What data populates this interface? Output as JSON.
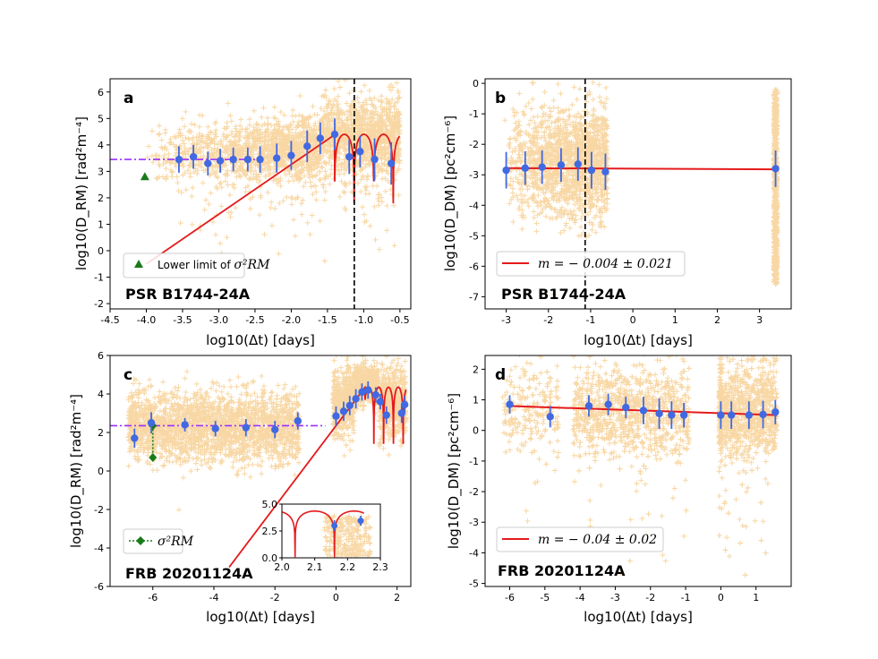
{
  "colors": {
    "scatter": "#f8d7a4",
    "binned": "#4169e1",
    "model": "#e41a1c",
    "dashdot": "#9b30ff",
    "lower_limit": "#1a7a1a",
    "vline": "#000000"
  },
  "chart_data": [
    {
      "panel": "a",
      "type": "scatter",
      "title": "PSR B1744-24A",
      "xlabel": "log10(Δt) [days]",
      "ylabel": "log10(D_RM) [rad²m⁻⁴]",
      "xlim": [
        -4.5,
        -0.35
      ],
      "ylim": [
        -2.2,
        6.5
      ],
      "xticks": [
        "-4.5",
        "-4.0",
        "-3.5",
        "-3.0",
        "-2.5",
        "-2.0",
        "-1.5",
        "-1.0",
        "-0.5"
      ],
      "yticks": [
        "-2",
        "-1",
        "0",
        "1",
        "2",
        "3",
        "4",
        "5",
        "6"
      ],
      "xtick_values": [
        -4.5,
        -4.0,
        -3.5,
        -3.0,
        -2.5,
        -2.0,
        -1.5,
        -1.0,
        -0.5
      ],
      "ytick_values": [
        -2,
        -1,
        0,
        1,
        2,
        3,
        4,
        5,
        6
      ],
      "vline_x": -1.13,
      "dashdot_y": 3.45,
      "dashdot_x": [
        -4.5,
        -2.5
      ],
      "lower_limit_point": {
        "x": -4.02,
        "y": 2.8
      },
      "legend": {
        "label": "Lower limit of ",
        "math": "σ²RM",
        "position": "lower-left"
      },
      "binned": [
        {
          "x": -3.55,
          "y": 3.45,
          "err": 0.5
        },
        {
          "x": -3.35,
          "y": 3.55,
          "err": 0.45
        },
        {
          "x": -3.15,
          "y": 3.3,
          "err": 0.45
        },
        {
          "x": -2.98,
          "y": 3.4,
          "err": 0.45
        },
        {
          "x": -2.8,
          "y": 3.45,
          "err": 0.45
        },
        {
          "x": -2.6,
          "y": 3.45,
          "err": 0.45
        },
        {
          "x": -2.43,
          "y": 3.45,
          "err": 0.5
        },
        {
          "x": -2.2,
          "y": 3.5,
          "err": 0.55
        },
        {
          "x": -2.0,
          "y": 3.6,
          "err": 0.55
        },
        {
          "x": -1.78,
          "y": 3.95,
          "err": 0.6
        },
        {
          "x": -1.6,
          "y": 4.25,
          "err": 0.6
        },
        {
          "x": -1.4,
          "y": 4.4,
          "err": 0.6
        },
        {
          "x": -1.2,
          "y": 3.55,
          "err": 0.65
        },
        {
          "x": -1.05,
          "y": 3.75,
          "err": 0.6
        },
        {
          "x": -0.85,
          "y": 3.45,
          "err": 0.8
        },
        {
          "x": -0.62,
          "y": 3.3,
          "err": 0.8
        }
      ]
    },
    {
      "panel": "b",
      "type": "scatter",
      "title": "PSR B1744-24A",
      "xlabel": "log10(Δt) [days]",
      "ylabel": "log10(D_DM) [pc²cm⁻⁶]",
      "xlim": [
        -3.5,
        3.75
      ],
      "ylim": [
        -7.4,
        0.15
      ],
      "xticks": [
        "-3",
        "-2",
        "-1",
        "0",
        "1",
        "2",
        "3"
      ],
      "yticks": [
        "-7",
        "-6",
        "-5",
        "-4",
        "-3",
        "-2",
        "-1",
        "0"
      ],
      "xtick_values": [
        -3,
        -2,
        -1,
        0,
        1,
        2,
        3
      ],
      "ytick_values": [
        -7,
        -6,
        -5,
        -4,
        -3,
        -2,
        -1,
        0
      ],
      "vline_x": -1.13,
      "fit": {
        "x": [
          -3.05,
          3.38
        ],
        "y": [
          -2.78,
          -2.82
        ]
      },
      "legend": {
        "label": "m = − 0.004 ± 0.021",
        "position": "lower-left"
      },
      "binned": [
        {
          "x": -3.0,
          "y": -2.85,
          "err": 0.6
        },
        {
          "x": -2.55,
          "y": -2.78,
          "err": 0.55
        },
        {
          "x": -2.15,
          "y": -2.75,
          "err": 0.55
        },
        {
          "x": -1.7,
          "y": -2.68,
          "err": 0.55
        },
        {
          "x": -1.3,
          "y": -2.65,
          "err": 0.55
        },
        {
          "x": -0.98,
          "y": -2.85,
          "err": 0.6
        },
        {
          "x": -0.65,
          "y": -2.9,
          "err": 0.6
        },
        {
          "x": 3.38,
          "y": -2.8,
          "err": 0.6
        }
      ]
    },
    {
      "panel": "c",
      "type": "scatter",
      "title": "FRB 20201124A",
      "xlabel": "log10(Δt) [days]",
      "ylabel": "log10(D_RM) [rad²m⁻⁴]",
      "xlim": [
        -7.4,
        2.45
      ],
      "ylim": [
        -6,
        6
      ],
      "xticks": [
        "-6",
        "-4",
        "-2",
        "0",
        "2"
      ],
      "yticks": [
        "-6",
        "-4",
        "-2",
        "0",
        "2",
        "4",
        "6"
      ],
      "xtick_values": [
        -6,
        -4,
        -2,
        0,
        2
      ],
      "ytick_values": [
        -6,
        -4,
        -2,
        0,
        2,
        4,
        6
      ],
      "dashdot_y": 2.35,
      "dashdot_x": [
        -7.4,
        -0.35
      ],
      "sigma_point": {
        "x": -6.0,
        "y_low": 0.7,
        "y_high": 2.35
      },
      "legend": {
        "label": "",
        "math": "σ²RM",
        "position": "lower-left"
      },
      "binned": [
        {
          "x": -6.6,
          "y": 1.7,
          "err": 0.5
        },
        {
          "x": -6.05,
          "y": 2.5,
          "err": 0.55
        },
        {
          "x": -4.95,
          "y": 2.4,
          "err": 0.35
        },
        {
          "x": -3.95,
          "y": 2.2,
          "err": 0.4
        },
        {
          "x": -2.95,
          "y": 2.25,
          "err": 0.45
        },
        {
          "x": -2.0,
          "y": 2.15,
          "err": 0.45
        },
        {
          "x": -1.25,
          "y": 2.6,
          "err": 0.45
        },
        {
          "x": 0.0,
          "y": 2.85,
          "err": 0.5
        },
        {
          "x": 0.25,
          "y": 3.1,
          "err": 0.5
        },
        {
          "x": 0.45,
          "y": 3.4,
          "err": 0.5
        },
        {
          "x": 0.65,
          "y": 3.75,
          "err": 0.5
        },
        {
          "x": 0.85,
          "y": 4.1,
          "err": 0.45
        },
        {
          "x": 1.05,
          "y": 4.2,
          "err": 0.45
        },
        {
          "x": 1.3,
          "y": 3.95,
          "err": 0.4
        },
        {
          "x": 1.45,
          "y": 3.6,
          "err": 0.4
        },
        {
          "x": 1.65,
          "y": 2.9,
          "err": 0.45
        },
        {
          "x": 2.15,
          "y": 3.0,
          "err": 0.5
        },
        {
          "x": 2.25,
          "y": 3.45,
          "err": 0.45
        }
      ],
      "inset": {
        "xlim": [
          2.0,
          2.3
        ],
        "ylim": [
          0.0,
          5.0
        ],
        "xticks": [
          "2.0",
          "2.1",
          "2.2",
          "2.3"
        ],
        "yticks": [
          "0.0",
          "2.5",
          "5.0"
        ],
        "xtick_values": [
          2.0,
          2.1,
          2.2,
          2.3
        ],
        "ytick_values": [
          0.0,
          2.5,
          5.0
        ],
        "binned": [
          {
            "x": 2.16,
            "y": 3.0,
            "err": 0.5
          },
          {
            "x": 2.24,
            "y": 3.45,
            "err": 0.45
          }
        ]
      }
    },
    {
      "panel": "d",
      "type": "scatter",
      "title": "FRB 20201124A",
      "xlabel": "log10(Δt) [days]",
      "ylabel": "log10(D_DM) [pc²cm⁻⁶]",
      "xlim": [
        -6.7,
        2.0
      ],
      "ylim": [
        -5.1,
        2.45
      ],
      "xticks": [
        "-6",
        "-5",
        "-4",
        "-3",
        "-2",
        "-1",
        "0",
        "1"
      ],
      "yticks": [
        "-5",
        "-4",
        "-3",
        "-2",
        "-1",
        "0",
        "1",
        "2"
      ],
      "xtick_values": [
        -6,
        -5,
        -4,
        -3,
        -2,
        -1,
        0,
        1
      ],
      "ytick_values": [
        -5,
        -4,
        -3,
        -2,
        -1,
        0,
        1,
        2
      ],
      "fit": {
        "x": [
          -6.05,
          1.6
        ],
        "y": [
          0.8,
          0.5
        ]
      },
      "legend": {
        "label": "m = − 0.04 ± 0.02",
        "position": "lower-left"
      },
      "binned": [
        {
          "x": -6.0,
          "y": 0.85,
          "err": 0.3
        },
        {
          "x": -4.85,
          "y": 0.45,
          "err": 0.35
        },
        {
          "x": -3.75,
          "y": 0.8,
          "err": 0.35
        },
        {
          "x": -3.2,
          "y": 0.85,
          "err": 0.35
        },
        {
          "x": -2.7,
          "y": 0.75,
          "err": 0.35
        },
        {
          "x": -2.2,
          "y": 0.65,
          "err": 0.45
        },
        {
          "x": -1.75,
          "y": 0.55,
          "err": 0.5
        },
        {
          "x": -1.4,
          "y": 0.5,
          "err": 0.45
        },
        {
          "x": -1.05,
          "y": 0.5,
          "err": 0.4
        },
        {
          "x": 0.0,
          "y": 0.5,
          "err": 0.45
        },
        {
          "x": 0.3,
          "y": 0.5,
          "err": 0.45
        },
        {
          "x": 0.8,
          "y": 0.5,
          "err": 0.45
        },
        {
          "x": 1.2,
          "y": 0.52,
          "err": 0.45
        },
        {
          "x": 1.55,
          "y": 0.6,
          "err": 0.4
        }
      ]
    }
  ]
}
